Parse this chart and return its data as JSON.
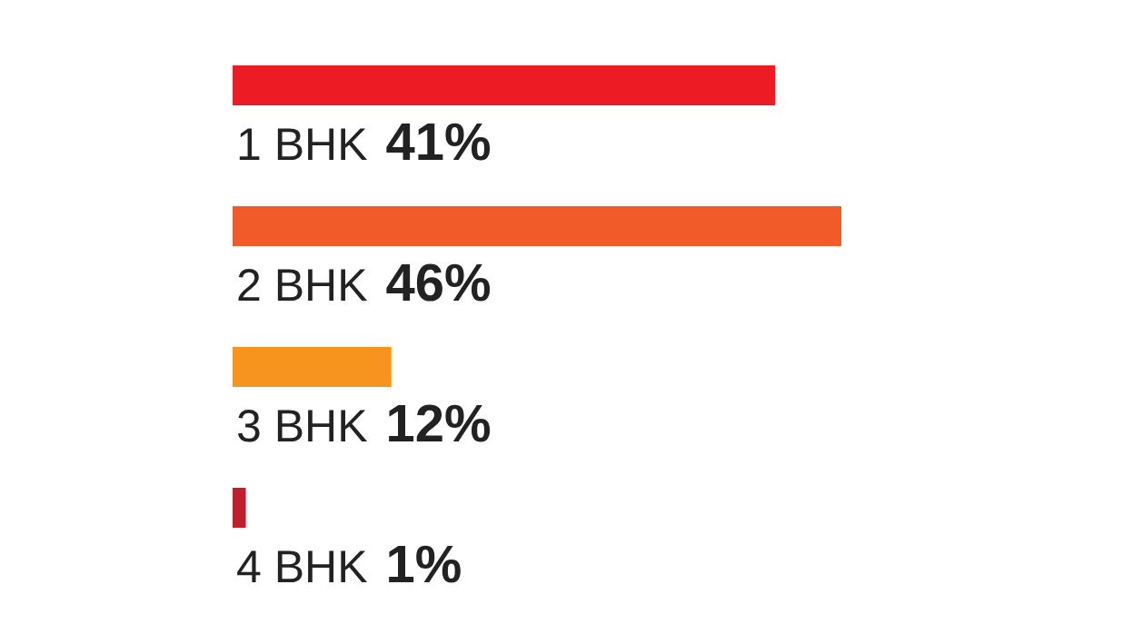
{
  "chart_data": {
    "type": "bar",
    "orientation": "horizontal",
    "categories": [
      "1 BHK",
      "2 BHK",
      "3 BHK",
      "4 BHK"
    ],
    "values": [
      41,
      46,
      12,
      1
    ],
    "value_labels": [
      "41%",
      "46%",
      "12%",
      "1%"
    ],
    "colors": [
      "#ed1c24",
      "#f15a29",
      "#f7941d",
      "#be1e2d"
    ]
  }
}
